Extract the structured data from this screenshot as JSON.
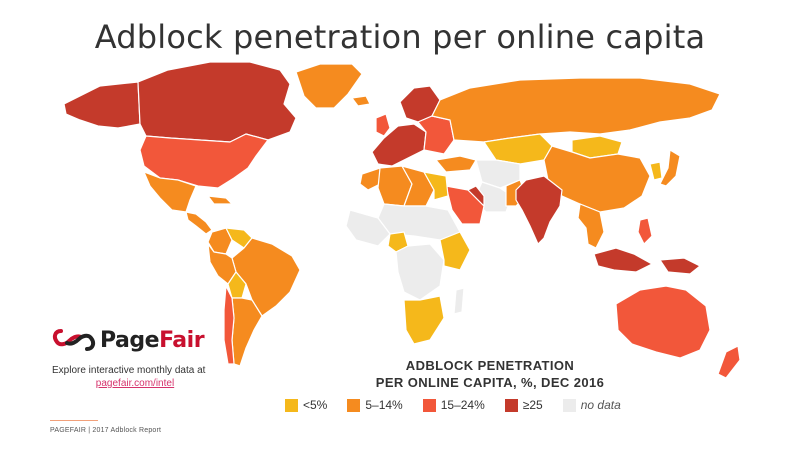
{
  "title": "Adblock penetration per online capita",
  "brand": {
    "name_part1": "Page",
    "name_part2": "Fair",
    "logo_icon": "pagefair-logo-icon"
  },
  "explore": {
    "text": "Explore interactive monthly data at",
    "link": "pagefair.com/intel"
  },
  "legend": {
    "title_line1": "ADBLOCK PENETRATION",
    "title_line2": "PER ONLINE CAPITA, %, DEC 2016",
    "items": [
      {
        "label": "<5%",
        "color": "#f5b81b"
      },
      {
        "label": "5–14%",
        "color": "#f58b1f"
      },
      {
        "label": "15–24%",
        "color": "#f2573a"
      },
      {
        "label": "≥25",
        "color": "#c43a2b"
      },
      {
        "label": "no data",
        "color": "#ececec"
      }
    ]
  },
  "footer": "PAGEFAIR | 2017 Adblock Report",
  "colors": {
    "lt5": "#f5b81b",
    "c5_14": "#f58b1f",
    "c15_24": "#f2573a",
    "ge25": "#c43a2b",
    "nodata": "#ececec"
  },
  "map_data": {
    "regions": [
      {
        "name": "Canada",
        "class": "ge25"
      },
      {
        "name": "Alaska",
        "class": "ge25"
      },
      {
        "name": "Greenland",
        "class": "c5_14"
      },
      {
        "name": "United States",
        "class": "c15_24"
      },
      {
        "name": "Mexico",
        "class": "c5_14"
      },
      {
        "name": "Central America",
        "class": "c5_14"
      },
      {
        "name": "Cuba",
        "class": "c5_14"
      },
      {
        "name": "Colombia",
        "class": "c5_14"
      },
      {
        "name": "Venezuela",
        "class": "lt5"
      },
      {
        "name": "Brazil",
        "class": "c5_14"
      },
      {
        "name": "Peru",
        "class": "c5_14"
      },
      {
        "name": "Bolivia",
        "class": "lt5"
      },
      {
        "name": "Argentina",
        "class": "c5_14"
      },
      {
        "name": "Chile",
        "class": "c15_24"
      },
      {
        "name": "Iceland",
        "class": "c5_14"
      },
      {
        "name": "UK",
        "class": "c15_24"
      },
      {
        "name": "Scandinavia",
        "class": "ge25"
      },
      {
        "name": "Western Europe",
        "class": "ge25"
      },
      {
        "name": "Eastern Europe",
        "class": "c15_24"
      },
      {
        "name": "Russia",
        "class": "c5_14"
      },
      {
        "name": "Turkey",
        "class": "c5_14"
      },
      {
        "name": "Kazakhstan",
        "class": "lt5"
      },
      {
        "name": "Mongolia",
        "class": "lt5"
      },
      {
        "name": "China",
        "class": "c5_14"
      },
      {
        "name": "Japan",
        "class": "c5_14"
      },
      {
        "name": "Korea",
        "class": "lt5"
      },
      {
        "name": "Central Asia",
        "class": "nodata"
      },
      {
        "name": "Iran",
        "class": "nodata"
      },
      {
        "name": "Saudi Arabia",
        "class": "c15_24"
      },
      {
        "name": "Gulf",
        "class": "ge25"
      },
      {
        "name": "India",
        "class": "ge25"
      },
      {
        "name": "Pakistan",
        "class": "c5_14"
      },
      {
        "name": "Southeast Asia",
        "class": "c5_14"
      },
      {
        "name": "Indonesia",
        "class": "ge25"
      },
      {
        "name": "Philippines",
        "class": "c15_24"
      },
      {
        "name": "Papua",
        "class": "ge25"
      },
      {
        "name": "Australia",
        "class": "c15_24"
      },
      {
        "name": "New Zealand",
        "class": "c15_24"
      },
      {
        "name": "Morocco",
        "class": "c5_14"
      },
      {
        "name": "Algeria",
        "class": "c5_14"
      },
      {
        "name": "Libya",
        "class": "c5_14"
      },
      {
        "name": "Egypt",
        "class": "lt5"
      },
      {
        "name": "Sahel",
        "class": "nodata"
      },
      {
        "name": "West Africa",
        "class": "nodata"
      },
      {
        "name": "Nigeria",
        "class": "lt5"
      },
      {
        "name": "Central Africa",
        "class": "nodata"
      },
      {
        "name": "East Africa",
        "class": "lt5"
      },
      {
        "name": "Southern Africa",
        "class": "lt5"
      },
      {
        "name": "Madagascar",
        "class": "nodata"
      }
    ]
  }
}
